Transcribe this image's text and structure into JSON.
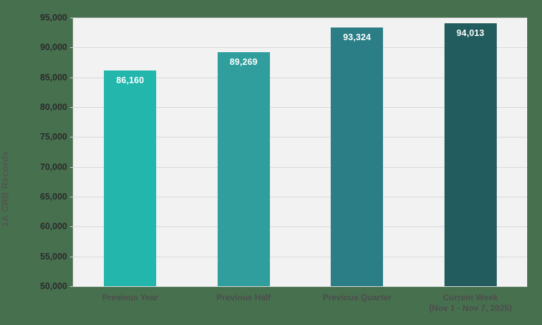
{
  "page": {
    "background_color": "#47704F"
  },
  "chart_data": {
    "type": "bar",
    "title": "",
    "xlabel": "",
    "ylabel": "1A CRB Records",
    "categories": [
      [
        "Previous Year"
      ],
      [
        "Previous Half"
      ],
      [
        "Previous Quarter"
      ],
      [
        "Current Week",
        "(Nov 1 - Nov 7, 2025)"
      ]
    ],
    "values": [
      86160,
      89269,
      93324,
      94013
    ],
    "value_labels": [
      "86,160",
      "89,269",
      "93,324",
      "94,013"
    ],
    "bar_colors": [
      "#23B6AC",
      "#2F9E9D",
      "#2B7E86",
      "#235C5E"
    ],
    "ylim": [
      50000,
      95000
    ],
    "ytick_step": 5000,
    "ytick_labels": [
      "50,000",
      "55,000",
      "60,000",
      "65,000",
      "70,000",
      "75,000",
      "80,000",
      "85,000",
      "90,000",
      "95,000"
    ],
    "grid": true,
    "legend": "none",
    "plot_background": "#F2F2F2",
    "gridline_color": "#D9D9D9",
    "value_label_color": "#FFFFFF",
    "ytick_label_color": "#2B2B2B",
    "category_label_color": "#4D4D4D"
  }
}
